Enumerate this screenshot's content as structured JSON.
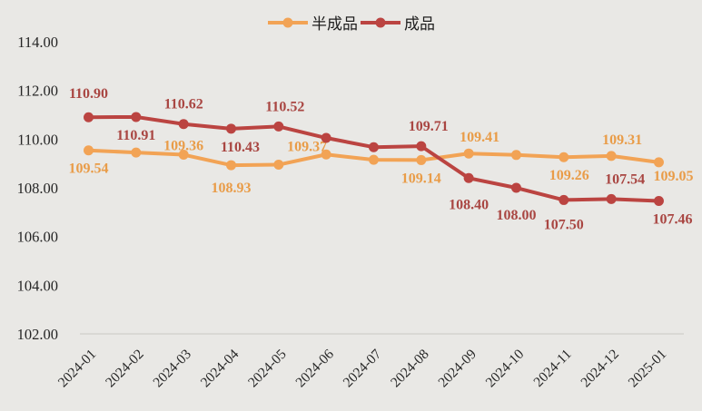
{
  "colors": {
    "background": "#E9E8E5",
    "axis_line": "#C9C7C4",
    "tick_text": "#262626",
    "semi_finished_line": "#F2A355",
    "semi_finished_label": "#E99C48",
    "finished_line": "#BB4441",
    "finished_label": "#A94642"
  },
  "chart_data": {
    "type": "line",
    "title": "",
    "xlabel": "",
    "ylabel": "",
    "ylim": [
      102,
      114
    ],
    "yticks": [
      "102.00",
      "104.00",
      "106.00",
      "108.00",
      "110.00",
      "112.00",
      "114.00"
    ],
    "grid": "bottom-axis-only",
    "legend_position": "top-center",
    "categories": [
      "2024-01",
      "2024-02",
      "2024-03",
      "2024-04",
      "2024-05",
      "2024-06",
      "2024-07",
      "2024-08",
      "2024-09",
      "2024-10",
      "2024-11",
      "2024-12",
      "2025-01"
    ],
    "series": [
      {
        "name": "半成品",
        "color": "#F2A355",
        "label_color": "#E99C48",
        "values": [
          109.54,
          109.45,
          109.36,
          108.93,
          108.95,
          109.37,
          109.15,
          109.14,
          109.41,
          109.35,
          109.26,
          109.31,
          109.05
        ],
        "point_labels": [
          {
            "text": "109.54",
            "pos": "below"
          },
          null,
          {
            "text": "109.36",
            "pos": "above",
            "dy": 12
          },
          {
            "text": "108.93",
            "pos": "below",
            "dy": 5
          },
          null,
          {
            "text": "109.37",
            "pos": "above",
            "dx": -21,
            "dy": 13
          },
          null,
          {
            "text": "109.14",
            "pos": "below"
          },
          {
            "text": "109.41",
            "pos": "above",
            "dx": 12,
            "dy": 4
          },
          null,
          {
            "text": "109.26",
            "pos": "below",
            "dx": 6
          },
          {
            "text": "109.31",
            "pos": "above",
            "dx": 12,
            "dy": 4
          },
          {
            "text": "109.05",
            "pos": "below",
            "dx": 16,
            "dy": -5
          }
        ]
      },
      {
        "name": "成品",
        "color": "#BB4441",
        "label_color": "#A94642",
        "values": [
          110.9,
          110.91,
          110.62,
          110.43,
          110.52,
          110.05,
          109.67,
          109.71,
          108.4,
          108.0,
          107.5,
          107.54,
          107.46
        ],
        "point_labels": [
          {
            "text": "110.90",
            "pos": "above",
            "dy": -4
          },
          {
            "text": "110.91",
            "pos": "below"
          },
          {
            "text": "110.62",
            "pos": "above"
          },
          {
            "text": "110.43",
            "pos": "below",
            "dx": 10
          },
          {
            "text": "110.52",
            "pos": "above",
            "dx": 7
          },
          null,
          null,
          {
            "text": "109.71",
            "pos": "above",
            "dx": 8
          },
          {
            "text": "108.40",
            "pos": "below",
            "dy": 9
          },
          {
            "text": "108.00",
            "pos": "below",
            "dy": 10
          },
          {
            "text": "107.50",
            "pos": "below",
            "dy": 7
          },
          {
            "text": "107.54",
            "pos": "above",
            "dx": 15
          },
          {
            "text": "107.46",
            "pos": "below",
            "dx": 15
          }
        ]
      }
    ]
  }
}
